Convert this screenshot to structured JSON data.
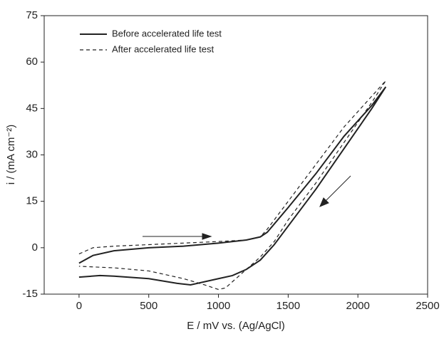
{
  "chart_data": {
    "type": "line",
    "xlabel": "E / mV vs. (Ag/AgCl)",
    "ylabel": "i / (mA cm⁻²)",
    "xlim": [
      -250,
      2500
    ],
    "xticks": [
      0,
      500,
      1000,
      1500,
      2000,
      2500
    ],
    "ylim": [
      -15,
      75
    ],
    "yticks": [
      -15,
      0,
      15,
      30,
      45,
      60,
      75
    ],
    "legend": "upper left",
    "series": [
      {
        "name": "Before accelerated life test",
        "color": "#222222",
        "dash": "solid",
        "x": [
          0,
          100,
          250,
          500,
          750,
          1000,
          1200,
          1300,
          1350,
          1500,
          1700,
          1900,
          2100,
          2200,
          2100,
          1900,
          1700,
          1500,
          1400,
          1300,
          1200,
          1100,
          1000,
          900,
          800,
          700,
          500,
          250,
          150,
          0
        ],
        "values": [
          -5,
          -2.5,
          -1,
          0,
          0.5,
          1.5,
          2.5,
          3.5,
          5,
          13,
          24,
          36,
          46,
          52,
          45,
          32,
          19,
          7,
          1,
          -4,
          -7,
          -9,
          -10,
          -11,
          -12,
          -11.5,
          -10,
          -9.2,
          -9,
          -9.5
        ]
      },
      {
        "name": "After accelerated life test",
        "color": "#222222",
        "dash": "dashed",
        "x": [
          0,
          100,
          250,
          500,
          750,
          1000,
          1200,
          1300,
          1350,
          1500,
          1700,
          1900,
          2100,
          2200,
          2100,
          1900,
          1700,
          1500,
          1400,
          1300,
          1200,
          1100,
          1050,
          1000,
          900,
          750,
          500,
          250,
          0
        ],
        "values": [
          -2,
          0,
          0.5,
          1,
          1.5,
          2,
          2.5,
          3.5,
          6,
          15,
          27,
          39,
          49,
          54,
          47,
          34,
          21,
          9,
          2,
          -3,
          -7,
          -11,
          -13,
          -13.5,
          -12,
          -10,
          -7.5,
          -6.5,
          -6
        ]
      }
    ]
  }
}
